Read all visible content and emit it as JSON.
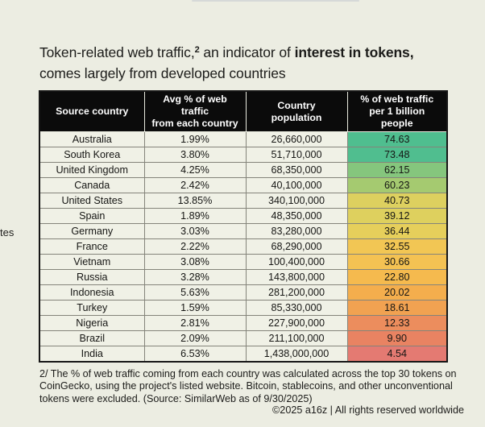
{
  "page": {
    "background": "#ecede2"
  },
  "edge_fragments": {
    "dash": "-",
    "text": "tes"
  },
  "title": {
    "pre": "Token-related web traffic,",
    "sup": "2",
    "mid": " an indicator of ",
    "bold": "interest in tokens,",
    "post": " comes largely from developed countries"
  },
  "table": {
    "header_bg": "#0b0b0b",
    "header_text_color": "#ffffff",
    "headers": [
      "Source country",
      "Avg % of web traffic\nfrom each country",
      "Country\npopulation",
      "% of web traffic\nper 1 billion people"
    ],
    "rows": [
      {
        "country": "Australia",
        "avg_pct": "1.99%",
        "population": "26,660,000",
        "per_billion": "74.63",
        "heat_color": "#4fbe8f"
      },
      {
        "country": "South Korea",
        "avg_pct": "3.80%",
        "population": "51,710,000",
        "per_billion": "73.48",
        "heat_color": "#50be8f"
      },
      {
        "country": "United Kingdom",
        "avg_pct": "4.25%",
        "population": "68,350,000",
        "per_billion": "62.15",
        "heat_color": "#85c67d"
      },
      {
        "country": "Canada",
        "avg_pct": "2.42%",
        "population": "40,100,000",
        "per_billion": "60.23",
        "heat_color": "#a5ca70"
      },
      {
        "country": "United States",
        "avg_pct": "13.85%",
        "population": "340,100,000",
        "per_billion": "40.73",
        "heat_color": "#ddd05f"
      },
      {
        "country": "Spain",
        "avg_pct": "1.89%",
        "population": "48,350,000",
        "per_billion": "39.12",
        "heat_color": "#ded05e"
      },
      {
        "country": "Germany",
        "avg_pct": "3.03%",
        "population": "83,280,000",
        "per_billion": "36.44",
        "heat_color": "#e6cf5b"
      },
      {
        "country": "France",
        "avg_pct": "2.22%",
        "population": "68,290,000",
        "per_billion": "32.55",
        "heat_color": "#f2c654"
      },
      {
        "country": "Vietnam",
        "avg_pct": "3.08%",
        "population": "100,400,000",
        "per_billion": "30.66",
        "heat_color": "#f4c253"
      },
      {
        "country": "Russia",
        "avg_pct": "3.28%",
        "population": "143,800,000",
        "per_billion": "22.80",
        "heat_color": "#f5ba4e"
      },
      {
        "country": "Indonesia",
        "avg_pct": "5.63%",
        "population": "281,200,000",
        "per_billion": "20.02",
        "heat_color": "#f4ae4d"
      },
      {
        "country": "Turkey",
        "avg_pct": "1.59%",
        "population": "85,330,000",
        "per_billion": "18.61",
        "heat_color": "#f1a251"
      },
      {
        "country": "Nigeria",
        "avg_pct": "2.81%",
        "population": "227,900,000",
        "per_billion": "12.33",
        "heat_color": "#ec8d5d"
      },
      {
        "country": "Brazil",
        "avg_pct": "2.09%",
        "population": "211,100,000",
        "per_billion": "9.90",
        "heat_color": "#e98362"
      },
      {
        "country": "India",
        "avg_pct": "6.53%",
        "population": "1,438,000,000",
        "per_billion": "4.54",
        "heat_color": "#e47a72"
      }
    ]
  },
  "footnote": {
    "lines": [
      "2/ The % of web traffic coming from each country was calculated across the top 30 tokens on",
      "CoinGecko, using the project's listed website. Bitcoin, stablecoins, and other unconventional",
      "tokens were excluded. (Source: SimilarWeb as of 9/30/2025)"
    ]
  },
  "copyright": "©2025 a16z | All rights reserved worldwide",
  "chart_data": {
    "type": "table",
    "title": "Token-related web traffic, an indicator of interest in tokens, comes largely from developed countries",
    "columns": [
      "Source country",
      "Avg % of web traffic from each country",
      "Country population",
      "% of web traffic per 1 billion people"
    ],
    "rows": [
      [
        "Australia",
        1.99,
        26660000,
        74.63
      ],
      [
        "South Korea",
        3.8,
        51710000,
        73.48
      ],
      [
        "United Kingdom",
        4.25,
        68350000,
        62.15
      ],
      [
        "Canada",
        2.42,
        40100000,
        60.23
      ],
      [
        "United States",
        13.85,
        340100000,
        40.73
      ],
      [
        "Spain",
        1.89,
        48350000,
        39.12
      ],
      [
        "Germany",
        3.03,
        83280000,
        36.44
      ],
      [
        "France",
        2.22,
        68290000,
        32.55
      ],
      [
        "Vietnam",
        3.08,
        100400000,
        30.66
      ],
      [
        "Russia",
        3.28,
        143800000,
        22.8
      ],
      [
        "Indonesia",
        5.63,
        281200000,
        20.02
      ],
      [
        "Turkey",
        1.59,
        85330000,
        18.61
      ],
      [
        "Nigeria",
        2.81,
        227900000,
        12.33
      ],
      [
        "Brazil",
        2.09,
        211100000,
        9.9
      ],
      [
        "India",
        6.53,
        1438000000,
        4.54
      ]
    ],
    "heatmap_column": "% of web traffic per 1 billion people",
    "heatmap_color_high": "#4fbe8f",
    "heatmap_color_mid": "#ddd05f",
    "heatmap_color_low": "#e47a72",
    "source": "SimilarWeb as of 9/30/2025"
  }
}
